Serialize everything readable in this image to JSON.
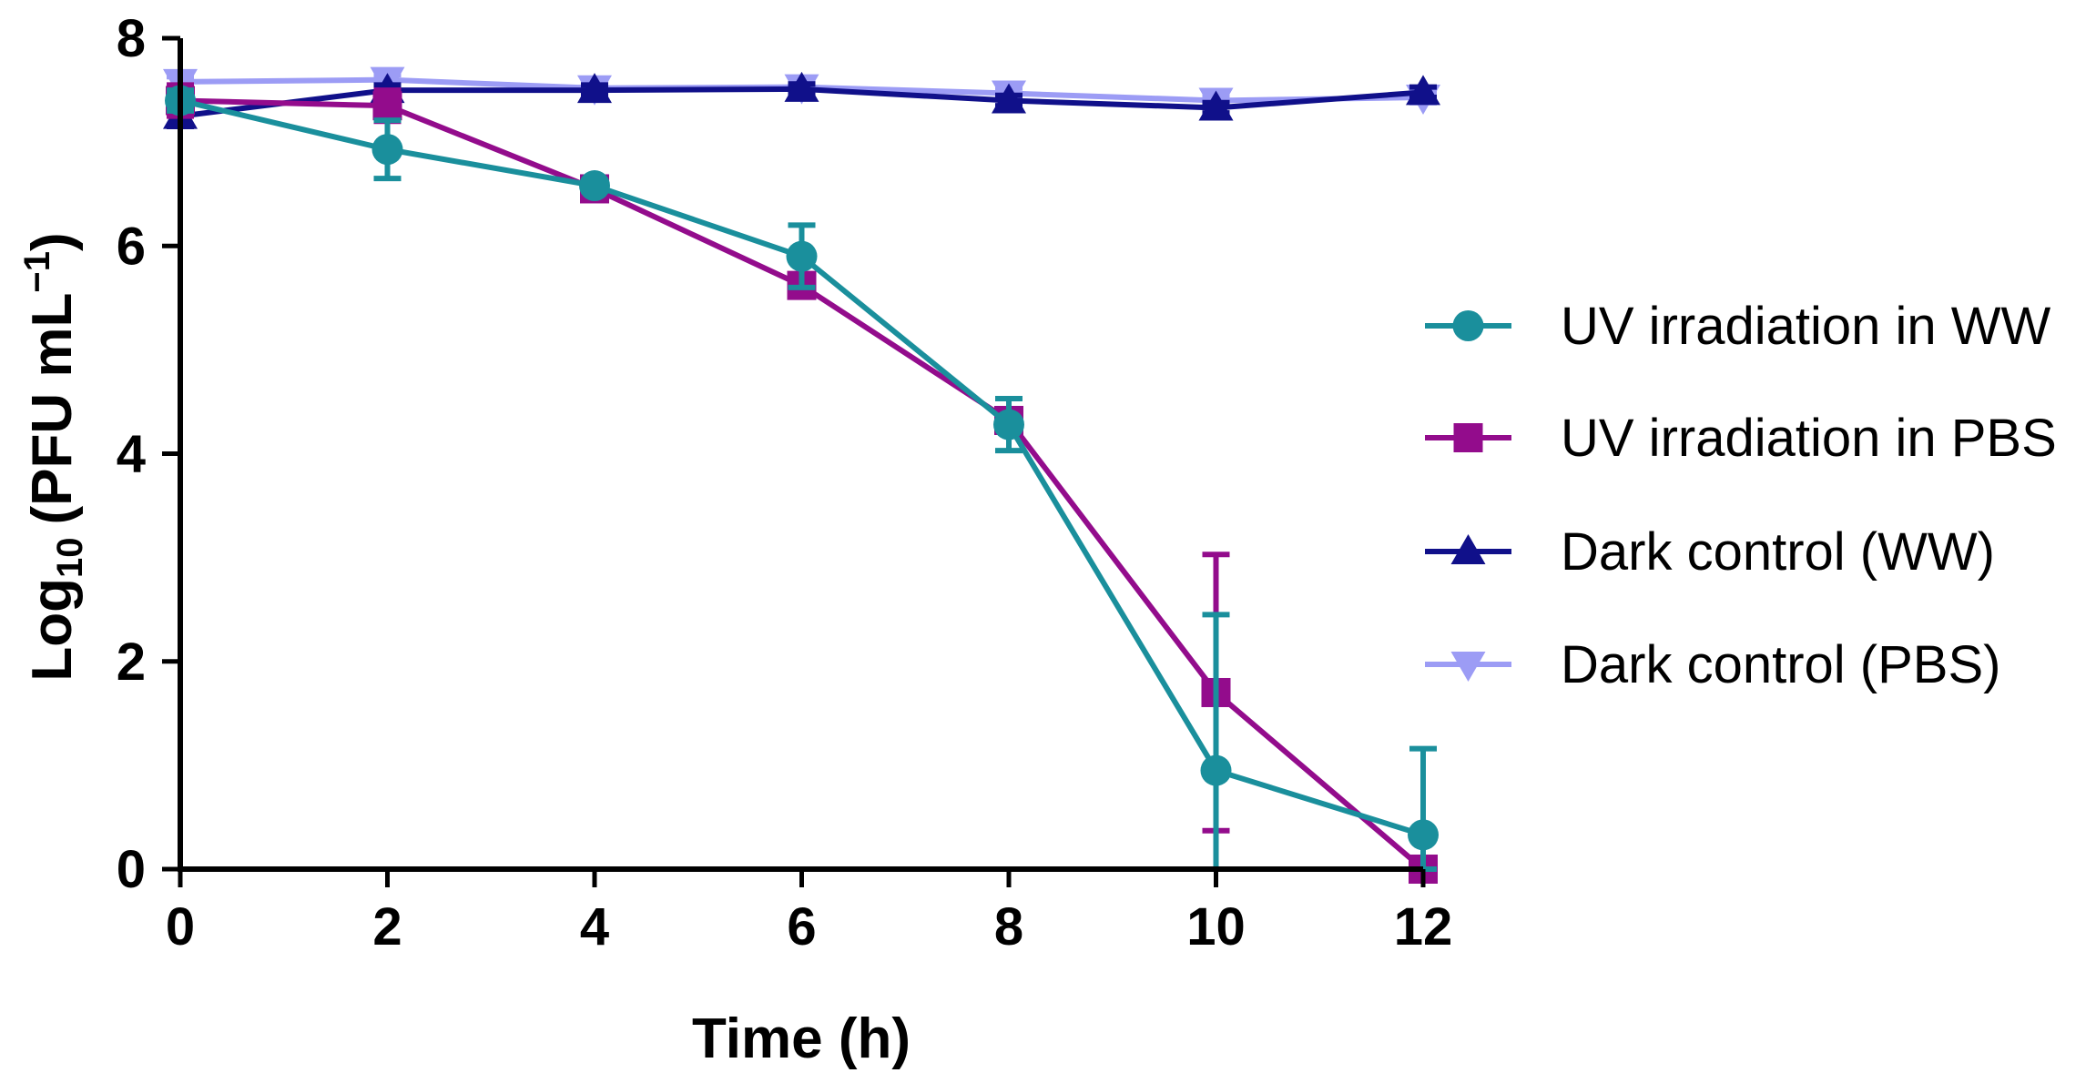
{
  "chart_data": {
    "type": "line",
    "title": "",
    "xlabel": "Time (h)",
    "ylabel": {
      "main": "Log",
      "subscript": "10",
      "unit_prefix": "(PFU mL",
      "unit_superscript": "−1",
      "unit_suffix": ")"
    },
    "xlim": [
      0,
      12
    ],
    "ylim": [
      0,
      8
    ],
    "xticks": [
      0,
      2,
      4,
      6,
      8,
      10,
      12
    ],
    "yticks": [
      0,
      2,
      4,
      6,
      8
    ],
    "x": [
      0,
      2,
      4,
      6,
      8,
      10,
      12
    ],
    "grid": false,
    "legend_position": "right",
    "series": [
      {
        "name": "UV irradiation in WW",
        "color": "#1a8f9c",
        "marker": "circle",
        "values": [
          7.4,
          6.93,
          6.58,
          5.9,
          4.28,
          0.95,
          0.33
        ],
        "errors": [
          0.1,
          0.28,
          0.05,
          0.3,
          0.25,
          1.5,
          0.83
        ]
      },
      {
        "name": "UV irradiation in PBS",
        "color": "#930c8c",
        "marker": "square",
        "values": [
          7.4,
          7.35,
          6.55,
          5.62,
          4.32,
          1.7,
          0.0
        ],
        "errors": [
          0.15,
          0.15,
          0.05,
          0.08,
          0.1,
          1.33,
          0.0
        ]
      },
      {
        "name": "Dark control (WW)",
        "color": "#10108a",
        "marker": "triangle-up",
        "values": [
          7.25,
          7.5,
          7.5,
          7.51,
          7.4,
          7.33,
          7.48
        ],
        "errors": [
          0.1,
          0.05,
          0.05,
          0.05,
          0.05,
          0.05,
          0.05
        ]
      },
      {
        "name": "Dark control (PBS)",
        "color": "#9c9cf5",
        "marker": "triangle-down",
        "values": [
          7.58,
          7.6,
          7.52,
          7.53,
          7.47,
          7.4,
          7.43
        ],
        "errors": [
          0.05,
          0.05,
          0.05,
          0.05,
          0.05,
          0.05,
          0.05
        ]
      }
    ]
  }
}
